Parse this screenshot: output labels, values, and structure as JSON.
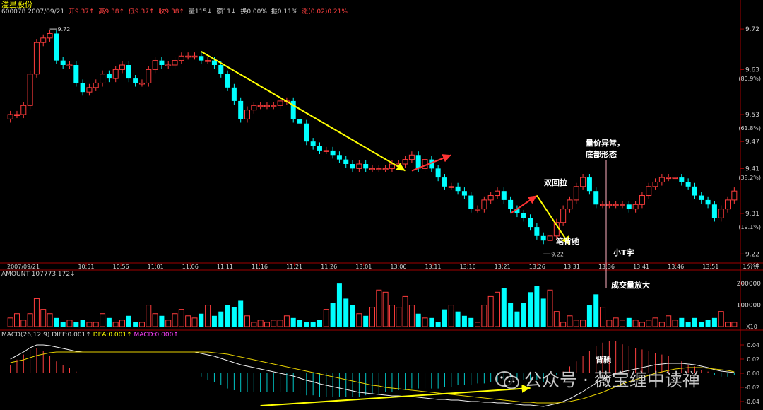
{
  "header": {
    "title": "溢星股份",
    "code_date": "600078 2007/09/21",
    "open": "开9.37↑",
    "high": "高9.38↑",
    "low": "低9.37↑",
    "close": "收9.38↑",
    "volume": "量115↓",
    "turnover": "额11↓",
    "turnover_rate": "换0.00%",
    "amplitude": "振0.11%",
    "change": "涨(0.02)0.21%"
  },
  "chart_data": [
    {
      "type": "candlestick",
      "title": "",
      "xlabel": "",
      "ylabel": "",
      "x_start_label": "2007/09/21",
      "x_tick_labels": [
        "10:51",
        "10:56",
        "11:01",
        "11:06",
        "11:11",
        "11:16",
        "11:21",
        "11:26",
        "13:01",
        "13:06",
        "13:11",
        "13:16",
        "13:21",
        "13:26",
        "13:31",
        "13:36",
        "13:41",
        "13:46",
        "13:51"
      ],
      "x_unit_label": "1分钟",
      "y_tick_labels": [
        "9.72",
        "9.63",
        "9.53",
        "9.47",
        "9.41",
        "9.31",
        "9.22"
      ],
      "y_percent_labels": [
        "(80.9%)",
        "(61.8%)",
        "(38.2%)",
        "(19.1%)"
      ],
      "ylim": [
        9.2,
        9.75
      ],
      "high_marker": "9.72",
      "low_marker": "9.22",
      "close": [
        9.53,
        9.53,
        9.55,
        9.62,
        9.69,
        9.7,
        9.71,
        9.65,
        9.64,
        9.64,
        9.6,
        9.58,
        9.59,
        9.6,
        9.62,
        9.61,
        9.63,
        9.64,
        9.61,
        9.6,
        9.6,
        9.63,
        9.65,
        9.64,
        9.64,
        9.65,
        9.66,
        9.66,
        9.66,
        9.65,
        9.65,
        9.64,
        9.62,
        9.59,
        9.56,
        9.52,
        9.54,
        9.55,
        9.55,
        9.55,
        9.55,
        9.56,
        9.56,
        9.52,
        9.51,
        9.47,
        9.46,
        9.45,
        9.45,
        9.44,
        9.43,
        9.42,
        9.41,
        9.42,
        9.41,
        9.41,
        9.41,
        9.41,
        9.42,
        9.42,
        9.43,
        9.44,
        9.41,
        9.43,
        9.41,
        9.39,
        9.37,
        9.37,
        9.36,
        9.35,
        9.32,
        9.32,
        9.34,
        9.35,
        9.36,
        9.34,
        9.32,
        9.31,
        9.3,
        9.28,
        9.26,
        9.25,
        9.26,
        9.29,
        9.32,
        9.34,
        9.37,
        9.39,
        9.36,
        9.33,
        9.33,
        9.33,
        9.33,
        9.33,
        9.32,
        9.33,
        9.35,
        9.37,
        9.38,
        9.39,
        9.39,
        9.39,
        9.38,
        9.37,
        9.35,
        9.34,
        9.33,
        9.3,
        9.32,
        9.34,
        9.36
      ]
    },
    {
      "type": "bar",
      "title": "AMOUNT",
      "value_label": "107773.172↓",
      "y_tick_labels": [
        "200000",
        "100000"
      ],
      "unit_label": "X10",
      "ylim": [
        0,
        230000
      ],
      "values": [
        40000,
        60000,
        30000,
        60000,
        130000,
        80000,
        60000,
        40000,
        20000,
        30000,
        20000,
        30000,
        20000,
        20000,
        60000,
        40000,
        20000,
        30000,
        50000,
        20000,
        20000,
        100000,
        60000,
        50000,
        30000,
        60000,
        80000,
        50000,
        40000,
        60000,
        100000,
        50000,
        70000,
        100000,
        90000,
        120000,
        50000,
        20000,
        30000,
        20000,
        30000,
        30000,
        50000,
        40000,
        30000,
        20000,
        20000,
        30000,
        80000,
        110000,
        200000,
        130000,
        100000,
        60000,
        50000,
        90000,
        170000,
        160000,
        100000,
        90000,
        140000,
        100000,
        60000,
        40000,
        40000,
        20000,
        80000,
        100000,
        70000,
        50000,
        40000,
        20000,
        100000,
        140000,
        160000,
        180000,
        110000,
        70000,
        110000,
        160000,
        190000,
        130000,
        170000,
        70000,
        20000,
        50000,
        30000,
        30000,
        100000,
        150000,
        90000,
        30000,
        40000,
        30000,
        40000,
        30000,
        20000,
        30000,
        40000,
        20000,
        50000,
        30000,
        40000,
        20000,
        40000,
        20000,
        30000,
        40000,
        70000,
        20000,
        20000
      ]
    },
    {
      "type": "line",
      "title": "MACD",
      "params": "(26,12,9)",
      "legend": [
        "DIFF:0.001↑",
        "DEA:0.001↑",
        "MACD:0.000↑"
      ],
      "y_tick_labels": [
        "0.04",
        "0.02",
        "0.00",
        "-0.02",
        "-0.04"
      ],
      "ylim": [
        -0.05,
        0.05
      ],
      "series": [
        {
          "name": "DIFF",
          "values": [
            0.02,
            0.025,
            0.03,
            0.036,
            0.04,
            0.04,
            0.039,
            0.037,
            0.035,
            0.033,
            0.031,
            0.03,
            0.03,
            0.03,
            0.03,
            0.03,
            0.03,
            0.03,
            0.03,
            0.03,
            0.03,
            0.03,
            0.03,
            0.03,
            0.03,
            0.03,
            0.03,
            0.03,
            0.03,
            0.028,
            0.026,
            0.024,
            0.021,
            0.018,
            0.015,
            0.012,
            0.01,
            0.008,
            0.006,
            0.004,
            0.002,
            0.0,
            -0.002,
            -0.004,
            -0.007,
            -0.01,
            -0.012,
            -0.015,
            -0.017,
            -0.019,
            -0.021,
            -0.023,
            -0.025,
            -0.027,
            -0.028,
            -0.029,
            -0.03,
            -0.031,
            -0.032,
            -0.032,
            -0.033,
            -0.033,
            -0.034,
            -0.035,
            -0.036,
            -0.037,
            -0.037,
            -0.038,
            -0.038,
            -0.039,
            -0.04,
            -0.04,
            -0.041,
            -0.041,
            -0.042,
            -0.042,
            -0.043,
            -0.044,
            -0.045,
            -0.045,
            -0.046,
            -0.047,
            -0.045,
            -0.043,
            -0.04,
            -0.036,
            -0.031,
            -0.026,
            -0.02,
            -0.014,
            -0.009,
            -0.004,
            0.0,
            0.002,
            0.004,
            0.006,
            0.008,
            0.01,
            0.012,
            0.013,
            0.014,
            0.014,
            0.014,
            0.013,
            0.012,
            0.01,
            0.008,
            0.005,
            0.003,
            0.002,
            0.001
          ]
        },
        {
          "name": "DEA",
          "values": [
            0.015,
            0.017,
            0.019,
            0.022,
            0.025,
            0.027,
            0.029,
            0.03,
            0.03,
            0.03,
            0.03,
            0.03,
            0.03,
            0.03,
            0.03,
            0.03,
            0.03,
            0.03,
            0.03,
            0.03,
            0.03,
            0.03,
            0.03,
            0.03,
            0.03,
            0.03,
            0.03,
            0.03,
            0.03,
            0.03,
            0.03,
            0.029,
            0.028,
            0.027,
            0.025,
            0.023,
            0.021,
            0.019,
            0.017,
            0.015,
            0.013,
            0.011,
            0.009,
            0.007,
            0.005,
            0.003,
            0.001,
            -0.001,
            -0.003,
            -0.005,
            -0.007,
            -0.009,
            -0.011,
            -0.013,
            -0.015,
            -0.017,
            -0.018,
            -0.02,
            -0.021,
            -0.022,
            -0.023,
            -0.024,
            -0.025,
            -0.026,
            -0.027,
            -0.028,
            -0.029,
            -0.03,
            -0.031,
            -0.032,
            -0.033,
            -0.034,
            -0.035,
            -0.036,
            -0.037,
            -0.038,
            -0.039,
            -0.04,
            -0.041,
            -0.041,
            -0.042,
            -0.042,
            -0.042,
            -0.042,
            -0.041,
            -0.04,
            -0.038,
            -0.036,
            -0.033,
            -0.03,
            -0.027,
            -0.023,
            -0.019,
            -0.015,
            -0.012,
            -0.009,
            -0.006,
            -0.003,
            0.0,
            0.002,
            0.004,
            0.006,
            0.007,
            0.008,
            0.008,
            0.008,
            0.007,
            0.006,
            0.005,
            0.004,
            0.002
          ]
        }
      ]
    }
  ],
  "annotations": {
    "double_pullback": "双回拉",
    "stroke_divergence": "笔背驰",
    "abnormal_bottom_line1": "量价异常，",
    "abnormal_bottom_line2": "底部形态",
    "small_t": "小T字",
    "volume_surge": "成交量放大",
    "divergence": "背驰"
  },
  "watermark": {
    "text": "公众号 · 薇宝缠中读禅"
  },
  "colors": {
    "up": "#ff3c3c",
    "down": "#00ffff",
    "yellow_line": "#ffff00",
    "red_arrow": "#ff3333",
    "annotation": "#ffffff"
  }
}
